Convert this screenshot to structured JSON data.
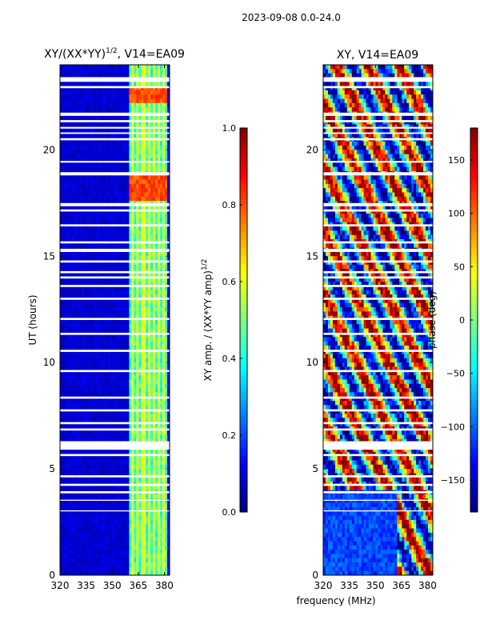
{
  "suptitle": "2023-09-08 0.0-24.0",
  "colors": {
    "background": "#ffffff",
    "flag_gap": "#ffffff",
    "low": "#00008f",
    "high": "#800000"
  },
  "chart_data": [
    {
      "type": "heatmap",
      "title_text": "XY/(XX*YY)",
      "title_power": "1/2",
      "title_suffix": ", V14=EA09",
      "xlabel": "",
      "ylabel": "UT (hours)",
      "xlim": [
        320,
        383
      ],
      "ylim": [
        0,
        24
      ],
      "xticks": [
        "320",
        "335",
        "350",
        "365",
        "380"
      ],
      "xtick_values": [
        320,
        335,
        350,
        365,
        380
      ],
      "yticks": [
        "0",
        "5",
        "10",
        "15",
        "20"
      ],
      "ytick_values": [
        0,
        5,
        10,
        15,
        20
      ],
      "colormap": "jet",
      "colorbar": {
        "label_text": "XY amp. / (XX*YY amp)",
        "label_power": "1/2",
        "vmin": 0.0,
        "vmax": 1.0,
        "ticks": [
          "0.0",
          "0.2",
          "0.4",
          "0.6",
          "0.8",
          "1.0"
        ],
        "tick_values": [
          0.0,
          0.2,
          0.4,
          0.6,
          0.8,
          1.0
        ]
      },
      "features": {
        "background_value": 0.05,
        "rfi_band_mhz": [
          360,
          382
        ],
        "rfi_band_value": 0.35,
        "bright_channels_mhz": [
          362,
          365,
          368,
          371,
          374,
          377,
          380
        ],
        "bright_value": 0.55,
        "hot_spot_hours": [
          [
            17.6,
            18.8
          ],
          [
            22.2,
            22.9
          ]
        ],
        "hot_spot_value": 0.75
      }
    },
    {
      "type": "heatmap",
      "title_text": "XY, V14=EA09",
      "xlabel": "frequency (MHz)",
      "ylabel": "",
      "xlim": [
        320,
        383
      ],
      "ylim": [
        0,
        24
      ],
      "xticks": [
        "320",
        "335",
        "350",
        "365",
        "380"
      ],
      "xtick_values": [
        320,
        335,
        350,
        365,
        380
      ],
      "yticks": [
        "0",
        "5",
        "10",
        "15",
        "20"
      ],
      "ytick_values": [
        0,
        5,
        10,
        15,
        20
      ],
      "colormap": "jet",
      "colorbar": {
        "label_text": "phase (deg)",
        "vmin": -180,
        "vmax": 180,
        "ticks": [
          "−150",
          "−100",
          "−50",
          "0",
          "50",
          "100",
          "150"
        ],
        "tick_values": [
          -150,
          -100,
          -50,
          0,
          50,
          100,
          150
        ]
      },
      "features": {
        "quiet_region_hours": [
          0,
          4
        ],
        "quiet_region_value": -110
      }
    }
  ],
  "flagged_hours": [
    [
      23.2,
      23.42
    ],
    [
      22.9,
      23.0
    ],
    [
      21.6,
      21.75
    ],
    [
      21.3,
      21.4
    ],
    [
      21.0,
      21.08
    ],
    [
      20.75,
      20.82
    ],
    [
      20.45,
      20.55
    ],
    [
      19.4,
      19.48
    ],
    [
      18.8,
      18.95
    ],
    [
      17.35,
      17.5
    ],
    [
      17.1,
      17.2
    ],
    [
      16.4,
      16.5
    ],
    [
      15.6,
      15.7
    ],
    [
      15.2,
      15.35
    ],
    [
      14.7,
      14.8
    ],
    [
      14.2,
      14.3
    ],
    [
      13.95,
      14.05
    ],
    [
      13.55,
      13.65
    ],
    [
      12.95,
      13.05
    ],
    [
      12.0,
      12.1
    ],
    [
      11.3,
      11.4
    ],
    [
      10.5,
      10.6
    ],
    [
      9.55,
      9.65
    ],
    [
      8.3,
      8.4
    ],
    [
      7.7,
      7.8
    ],
    [
      7.1,
      7.2
    ],
    [
      6.8,
      6.9
    ],
    [
      5.9,
      6.3
    ],
    [
      5.6,
      5.7
    ],
    [
      4.6,
      4.7
    ],
    [
      4.2,
      4.3
    ],
    [
      3.85,
      3.95
    ],
    [
      3.5,
      3.55
    ],
    [
      3.0,
      3.05
    ]
  ]
}
